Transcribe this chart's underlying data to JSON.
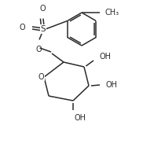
{
  "bg_color": "#ffffff",
  "line_color": "#2a2a2a",
  "line_width": 1.1,
  "font_size": 7.0,
  "figsize": [
    1.82,
    1.92
  ],
  "dpi": 100,
  "xlim": [
    0,
    9.1
  ],
  "ylim": [
    0,
    9.6
  ]
}
